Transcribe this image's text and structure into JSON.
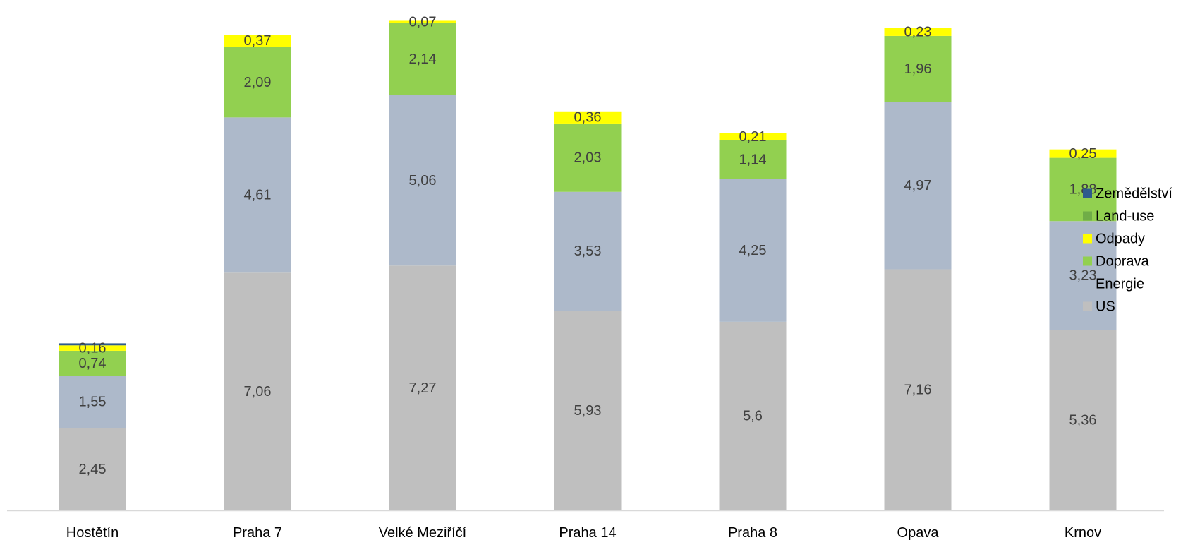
{
  "chart_data": {
    "type": "bar",
    "stacked": true,
    "title": "",
    "xlabel": "",
    "ylabel": "",
    "categories": [
      "Hostětín",
      "Praha 7",
      "Velké Meziříčí",
      "Praha 14",
      "Praha 8",
      "Opava",
      "Krnov"
    ],
    "series": [
      {
        "name": "US",
        "color": "#bfbfbf",
        "values": [
          2.45,
          7.06,
          7.27,
          5.93,
          5.6,
          7.16,
          5.36
        ],
        "labels": [
          "2,45",
          "7,06",
          "7,27",
          "5,93",
          "5,6",
          "7,16",
          "5,36"
        ]
      },
      {
        "name": "Energie",
        "color": "#adb9ca",
        "values": [
          1.55,
          4.61,
          5.06,
          3.53,
          4.25,
          4.97,
          3.23
        ],
        "labels": [
          "1,55",
          "4,61",
          "5,06",
          "3,53",
          "4,25",
          "4,97",
          "3,23"
        ]
      },
      {
        "name": "Doprava",
        "color": "#92d050",
        "values": [
          0.74,
          2.09,
          2.14,
          2.03,
          1.14,
          1.96,
          1.88
        ],
        "labels": [
          "0,74",
          "2,09",
          "2,14",
          "2,03",
          "1,14",
          "1,96",
          "1,88"
        ]
      },
      {
        "name": "Odpady",
        "color": "#ffff00",
        "values": [
          0.16,
          0.37,
          0.07,
          0.36,
          0.21,
          0.23,
          0.25
        ],
        "labels": [
          "0,16",
          "0,37",
          "0,07",
          "0,36",
          "0,21",
          "0,23",
          "0,25"
        ]
      },
      {
        "name": "Land-use",
        "color": "#70ad47",
        "values": [
          0,
          0,
          0,
          0,
          0,
          0,
          0
        ],
        "labels": [
          "",
          "",
          "",
          "",
          "",
          "",
          ""
        ]
      },
      {
        "name": "Zemědělství",
        "color": "#2e5b8c",
        "values": [
          0.06,
          0,
          0,
          0,
          0,
          0,
          0
        ],
        "labels": [
          "",
          "",
          "",
          "",
          "",
          "",
          ""
        ]
      }
    ],
    "legend_order": [
      "Zemědělství",
      "Land-use",
      "Odpady",
      "Doprava",
      "Energie",
      "US"
    ],
    "legend_position": "right",
    "ylim": [
      0,
      14.8
    ],
    "grid": false,
    "axis_color": "#d9d9d9"
  }
}
